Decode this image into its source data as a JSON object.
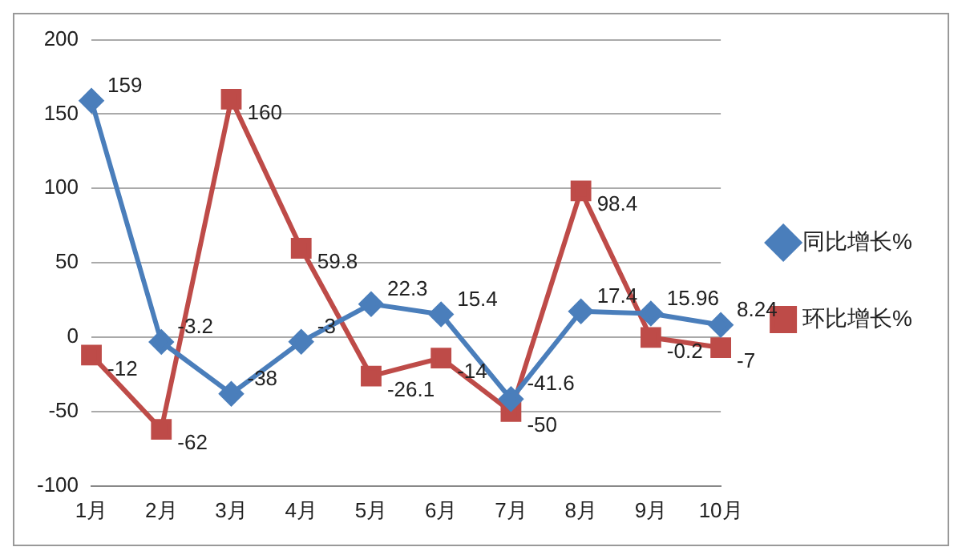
{
  "chart_data": {
    "type": "line",
    "categories": [
      "1月",
      "2月",
      "3月",
      "4月",
      "5月",
      "6月",
      "7月",
      "8月",
      "9月",
      "10月"
    ],
    "series": [
      {
        "name": "同比增长%",
        "color": "#4a7ebb",
        "marker": "diamond",
        "values": [
          159,
          -3.2,
          -38,
          -3,
          22.3,
          15.4,
          -41.6,
          17.4,
          15.96,
          8.24
        ]
      },
      {
        "name": "环比增长%",
        "color": "#be4b48",
        "marker": "square",
        "values": [
          -12,
          -62,
          160,
          59.8,
          -26.1,
          -14,
          -50,
          98.4,
          -0.2,
          -7
        ]
      }
    ],
    "ylim": [
      -100,
      200
    ],
    "yticks": [
      -100,
      -50,
      0,
      50,
      100,
      150,
      200
    ],
    "grid": "y",
    "legend": "right",
    "data_labels": true
  }
}
